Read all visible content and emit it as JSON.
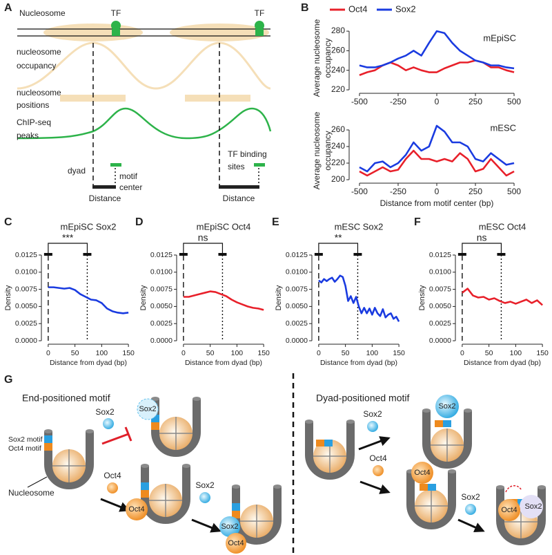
{
  "panel_labels": [
    "A",
    "B",
    "C",
    "D",
    "E",
    "F",
    "G"
  ],
  "diagram_a": {
    "nucleosome": "Nucleosome",
    "tf": "TF",
    "occupancy": [
      "nucleosome",
      "occupancy"
    ],
    "positions": [
      "nucleosome",
      "positions"
    ],
    "chip": [
      "ChIP-seq",
      "peaks"
    ],
    "dyad": "dyad",
    "motif_center": [
      "motif",
      "center"
    ],
    "distance": "Distance",
    "tf_sites": [
      "TF binding",
      "sites"
    ]
  },
  "diagram_g": {
    "end_title": "End-positioned motif",
    "dyad_title": "Dyad-positioned motif",
    "sox2": "Sox2",
    "oct4": "Oct4",
    "sox2_motif": "Sox2 motif",
    "oct4_motif": "Oct4 motif",
    "nucleosome": "Nucleosome"
  },
  "chart_data": [
    {
      "type": "line",
      "title": "mEpiSC",
      "ylabel": [
        "Average nucleosome",
        "occupancy"
      ],
      "x": [
        -500,
        -450,
        -400,
        -350,
        -300,
        -250,
        -200,
        -150,
        -100,
        -50,
        0,
        50,
        100,
        150,
        200,
        250,
        300,
        350,
        400,
        450,
        500
      ],
      "series": [
        {
          "name": "Oct4",
          "color": "#e8202a",
          "values": [
            235,
            238,
            240,
            245,
            248,
            245,
            240,
            243,
            240,
            238,
            238,
            242,
            245,
            248,
            248,
            250,
            248,
            243,
            243,
            240,
            238
          ]
        },
        {
          "name": "Sox2",
          "color": "#1a3be0",
          "values": [
            245,
            243,
            243,
            245,
            248,
            252,
            255,
            260,
            255,
            268,
            280,
            278,
            268,
            260,
            255,
            250,
            248,
            245,
            245,
            243,
            242
          ]
        }
      ],
      "xlim": [
        -540,
        540
      ],
      "ylim": [
        220,
        285
      ],
      "xticks": [
        -500,
        -250,
        0,
        250,
        500
      ],
      "yticks": [
        220,
        240,
        260,
        280
      ],
      "legend": "top"
    },
    {
      "type": "line",
      "title": "mESC",
      "ylabel": [
        "Average nucleosome",
        "occupancy"
      ],
      "xlabel": "Distance from motif center (bp)",
      "x": [
        -500,
        -450,
        -400,
        -350,
        -300,
        -250,
        -200,
        -150,
        -100,
        -50,
        0,
        50,
        100,
        150,
        200,
        250,
        300,
        350,
        400,
        450,
        500
      ],
      "series": [
        {
          "color": "#e8202a",
          "values": [
            210,
            205,
            210,
            215,
            210,
            212,
            225,
            235,
            225,
            225,
            222,
            225,
            222,
            232,
            225,
            210,
            213,
            225,
            215,
            205,
            210
          ]
        },
        {
          "color": "#1a3be0",
          "values": [
            215,
            210,
            220,
            222,
            215,
            220,
            230,
            245,
            235,
            240,
            265,
            258,
            245,
            245,
            240,
            225,
            222,
            232,
            225,
            218,
            220
          ]
        }
      ],
      "xlim": [
        -540,
        540
      ],
      "ylim": [
        200,
        270
      ],
      "xticks": [
        -500,
        -250,
        0,
        250,
        500
      ],
      "yticks": [
        200,
        220,
        240,
        260
      ]
    },
    {
      "type": "line",
      "title": "mEpiSC Sox2",
      "annotation": "***",
      "xlabel": "Distance from dyad (bp)",
      "ylabel": "Density",
      "color": "#1a3be0",
      "x": [
        0,
        10,
        20,
        30,
        40,
        50,
        60,
        70,
        80,
        90,
        100,
        110,
        120,
        130,
        140,
        150
      ],
      "values": [
        0.0078,
        0.0078,
        0.0077,
        0.0076,
        0.0077,
        0.0074,
        0.0068,
        0.0064,
        0.006,
        0.0059,
        0.0055,
        0.0047,
        0.0043,
        0.0041,
        0.004,
        0.0041
      ],
      "vlines": [
        0,
        73
      ],
      "xlim": [
        -5,
        155
      ],
      "ylim": [
        0,
        0.0125
      ],
      "xticks": [
        0,
        50,
        100,
        150
      ],
      "yticks": [
        {
          "value": 0,
          "label": "0.0000"
        },
        0.0025,
        {
          "value": 0.005,
          "label": "0.0050"
        },
        0.0075,
        {
          "value": 0.01,
          "label": "0.0100"
        },
        0.0125
      ]
    },
    {
      "type": "line",
      "title": "mEpiSC Oct4",
      "annotation": "ns",
      "xlabel": "Distance from dyad (bp)",
      "ylabel": "Density",
      "color": "#e8202a",
      "x": [
        0,
        10,
        20,
        30,
        40,
        50,
        60,
        70,
        80,
        90,
        100,
        110,
        120,
        130,
        140,
        150
      ],
      "values": [
        0.0064,
        0.0064,
        0.0066,
        0.0068,
        0.007,
        0.0072,
        0.0071,
        0.0068,
        0.0065,
        0.006,
        0.0056,
        0.0053,
        0.005,
        0.0048,
        0.0047,
        0.0045
      ],
      "vlines": [
        0,
        73
      ],
      "xlim": [
        -5,
        155
      ],
      "ylim": [
        0,
        0.0125
      ],
      "xticks": [
        0,
        50,
        100,
        150
      ],
      "yticks": [
        {
          "value": 0,
          "label": "0.0000"
        },
        0.0025,
        {
          "value": 0.005,
          "label": "0.0050"
        },
        0.0075,
        {
          "value": 0.01,
          "label": "0.0100"
        },
        0.0125
      ]
    },
    {
      "type": "line",
      "title": "mESC Sox2",
      "annotation": "**",
      "xlabel": "Distance from dyad (bp)",
      "ylabel": "Density",
      "color": "#1a3be0",
      "x": [
        0,
        5,
        10,
        15,
        20,
        25,
        30,
        35,
        40,
        45,
        50,
        55,
        60,
        65,
        70,
        75,
        80,
        85,
        90,
        95,
        100,
        105,
        110,
        115,
        120,
        125,
        130,
        135,
        140,
        145,
        150
      ],
      "values": [
        0.0088,
        0.0085,
        0.009,
        0.0087,
        0.009,
        0.0092,
        0.0086,
        0.009,
        0.0095,
        0.0093,
        0.008,
        0.0058,
        0.0065,
        0.0055,
        0.0064,
        0.005,
        0.004,
        0.0048,
        0.004,
        0.0047,
        0.0038,
        0.0048,
        0.004,
        0.0036,
        0.0046,
        0.0034,
        0.0038,
        0.004,
        0.0032,
        0.0035,
        0.0028
      ],
      "vlines": [
        0,
        73
      ],
      "xlim": [
        -5,
        155
      ],
      "ylim": [
        0,
        0.0125
      ],
      "xticks": [
        0,
        50,
        100,
        150
      ],
      "yticks": [
        {
          "value": 0,
          "label": "0.0000"
        },
        0.0025,
        {
          "value": 0.005,
          "label": "0.0050"
        },
        0.0075,
        {
          "value": 0.01,
          "label": "0.0100"
        },
        0.0125
      ]
    },
    {
      "type": "line",
      "title": "mESC Oct4",
      "annotation": "ns",
      "xlabel": "Distance from dyad (bp)",
      "ylabel": "Density",
      "color": "#e8202a",
      "x": [
        0,
        10,
        20,
        30,
        40,
        50,
        60,
        70,
        80,
        90,
        100,
        110,
        120,
        130,
        140,
        150
      ],
      "values": [
        0.007,
        0.0076,
        0.0066,
        0.0063,
        0.0064,
        0.006,
        0.0062,
        0.0058,
        0.0055,
        0.0057,
        0.0054,
        0.0057,
        0.006,
        0.0055,
        0.0059,
        0.0052
      ],
      "vlines": [
        0,
        73
      ],
      "xlim": [
        -5,
        155
      ],
      "ylim": [
        0,
        0.0125
      ],
      "xticks": [
        0,
        50,
        100,
        150
      ],
      "yticks": [
        {
          "value": 0,
          "label": "0.0000"
        },
        0.0025,
        {
          "value": 0.005,
          "label": "0.0050"
        },
        0.0075,
        {
          "value": 0.01,
          "label": "0.0100"
        },
        0.0125
      ]
    }
  ]
}
